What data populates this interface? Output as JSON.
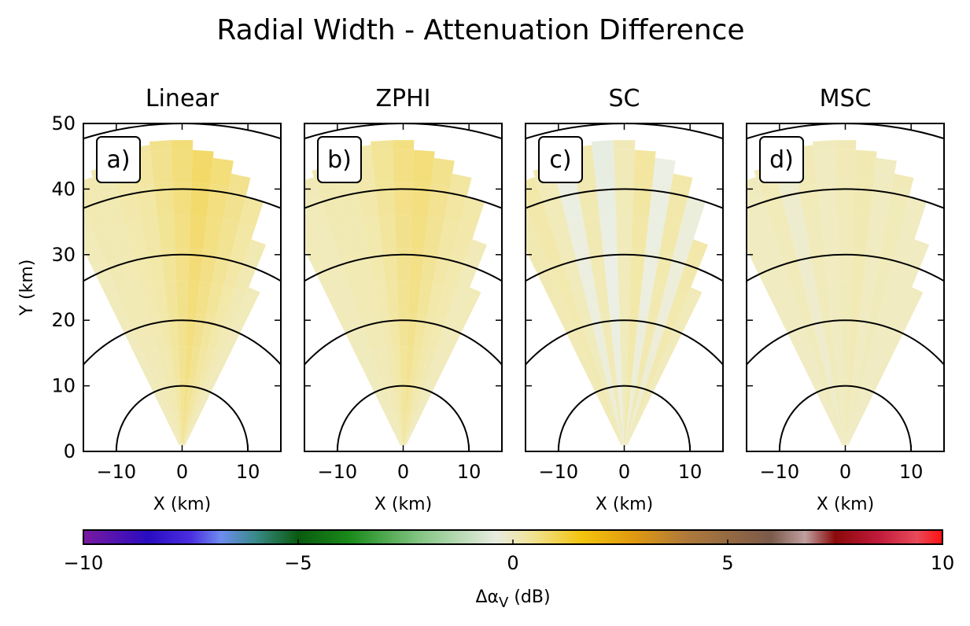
{
  "figure": {
    "title": "Radial Width - Attenuation Difference"
  },
  "chart_data": [
    {
      "type": "heatmap",
      "panel_label": "a)",
      "title": "Linear",
      "xlabel": "X (km)",
      "ylabel": "Y (km)",
      "xlim": [
        -15,
        15
      ],
      "ylim": [
        0,
        50
      ],
      "xticks": [
        -10,
        0,
        10
      ],
      "yticks": [
        0,
        10,
        20,
        30,
        40,
        50
      ],
      "range_rings_km": [
        10,
        20,
        30,
        40,
        50
      ],
      "beam_azimuths_deg": [
        -24,
        -20,
        -16,
        -12,
        -8,
        -4,
        0,
        4,
        8,
        12,
        16,
        20,
        24
      ],
      "approx_delta_alpha_by_beam_dB": [
        0.2,
        0.3,
        0.3,
        0.4,
        0.5,
        0.7,
        0.9,
        1.1,
        0.9,
        0.7,
        0.5,
        0.3,
        0.2
      ]
    },
    {
      "type": "heatmap",
      "panel_label": "b)",
      "title": "ZPHI",
      "xlabel": "X (km)",
      "xlim": [
        -15,
        15
      ],
      "ylim": [
        0,
        50
      ],
      "xticks": [
        -10,
        0,
        10
      ],
      "range_rings_km": [
        10,
        20,
        30,
        40,
        50
      ],
      "beam_azimuths_deg": [
        -24,
        -20,
        -16,
        -12,
        -8,
        -4,
        0,
        4,
        8,
        12,
        16,
        20,
        24
      ],
      "approx_delta_alpha_by_beam_dB": [
        0.2,
        0.2,
        0.3,
        0.3,
        0.4,
        0.6,
        0.8,
        0.9,
        0.7,
        0.5,
        0.4,
        0.2,
        0.2
      ]
    },
    {
      "type": "heatmap",
      "panel_label": "c)",
      "title": "SC",
      "xlabel": "X (km)",
      "xlim": [
        -15,
        15
      ],
      "ylim": [
        0,
        50
      ],
      "xticks": [
        -10,
        0,
        10
      ],
      "range_rings_km": [
        10,
        20,
        30,
        40,
        50
      ],
      "beam_azimuths_deg": [
        -24,
        -20,
        -16,
        -12,
        -8,
        -4,
        0,
        4,
        8,
        12,
        16,
        20,
        24
      ],
      "approx_delta_alpha_by_beam_dB": [
        0.3,
        0.4,
        0.2,
        -0.4,
        0.3,
        -0.5,
        0.2,
        0.5,
        -0.4,
        0.4,
        -0.3,
        0.4,
        0.2
      ]
    },
    {
      "type": "heatmap",
      "panel_label": "d)",
      "title": "MSC",
      "xlabel": "X (km)",
      "xlim": [
        -15,
        15
      ],
      "ylim": [
        0,
        50
      ],
      "xticks": [
        -10,
        0,
        10
      ],
      "range_rings_km": [
        10,
        20,
        30,
        40,
        50
      ],
      "beam_azimuths_deg": [
        -24,
        -20,
        -16,
        -12,
        -8,
        -4,
        0,
        4,
        8,
        12,
        16,
        20,
        24
      ],
      "approx_delta_alpha_by_beam_dB": [
        0.1,
        0.1,
        0.2,
        -0.1,
        0.2,
        0.1,
        0.2,
        0.3,
        0.1,
        0.2,
        0.1,
        0.1,
        0.1
      ]
    }
  ],
  "colorbar": {
    "label": "Δα",
    "label_sub": "V",
    "label_unit": "(dB)",
    "range": [
      -10,
      10
    ],
    "ticks": [
      "−10",
      "−5",
      "0",
      "5",
      "10"
    ],
    "tick_values": [
      -10,
      -5,
      0,
      5,
      10
    ],
    "stops": [
      {
        "v": -10,
        "c": "#7a1aa0"
      },
      {
        "v": -8.5,
        "c": "#2a0cc0"
      },
      {
        "v": -7.5,
        "c": "#4a2ee0"
      },
      {
        "v": -6.8,
        "c": "#6e8cf0"
      },
      {
        "v": -6.0,
        "c": "#3a8a8a"
      },
      {
        "v": -5.0,
        "c": "#0a5a10"
      },
      {
        "v": -3.8,
        "c": "#1a8a1a"
      },
      {
        "v": -2.2,
        "c": "#82c482"
      },
      {
        "v": -0.4,
        "c": "#e8ece0"
      },
      {
        "v": 0.4,
        "c": "#f0e49a"
      },
      {
        "v": 1.6,
        "c": "#f2c40e"
      },
      {
        "v": 2.8,
        "c": "#e09a10"
      },
      {
        "v": 4.0,
        "c": "#b07a3a"
      },
      {
        "v": 6.0,
        "c": "#7a5a4a"
      },
      {
        "v": 6.8,
        "c": "#c0a0a0"
      },
      {
        "v": 7.5,
        "c": "#8a0a0a"
      },
      {
        "v": 8.5,
        "c": "#c01a3a"
      },
      {
        "v": 9.4,
        "c": "#e84a5a"
      },
      {
        "v": 10,
        "c": "#ff1010"
      }
    ]
  }
}
